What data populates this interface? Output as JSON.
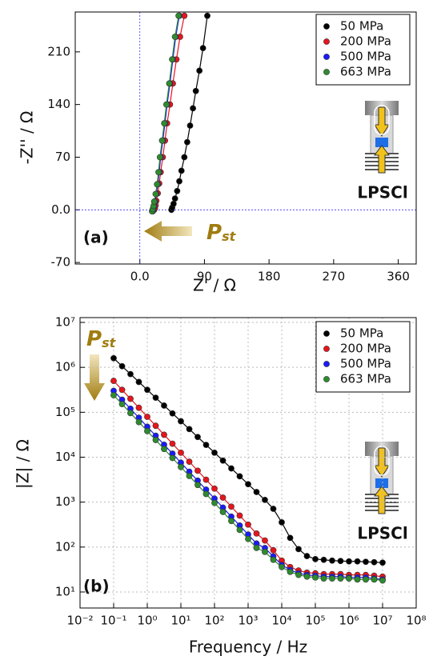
{
  "chart_data": [
    {
      "type": "line",
      "markers": true,
      "xlabel": "Z' / Ω",
      "ylabel": "-Z'' / Ω",
      "xlim": [
        -90,
        385
      ],
      "ylim": [
        -72,
        263
      ],
      "xticks": [
        {
          "value": 0,
          "label": "0.0"
        },
        90,
        180,
        270,
        360
      ],
      "yticks": [
        -70,
        {
          "value": 0,
          "label": "0.0"
        },
        70,
        140,
        210
      ],
      "grid": false,
      "zero_lines": true,
      "zero_line_color": "#3333ff",
      "legend": "upper right",
      "annotations": [
        "(a)",
        "LPSCl"
      ],
      "pressure_label": {
        "text": "P",
        "sub": "st"
      },
      "series": [
        {
          "name": "50 MPa",
          "color": "#000000",
          "x": [
            44,
            45,
            47,
            49,
            52,
            55,
            58,
            62,
            66,
            70,
            74,
            78,
            83,
            88,
            94
          ],
          "values": [
            0,
            3,
            8,
            15,
            25,
            38,
            52,
            70,
            90,
            112,
            135,
            158,
            185,
            215,
            258
          ]
        },
        {
          "name": "200 MPa",
          "color": "#e8141c",
          "x": [
            20,
            21,
            22,
            23,
            25,
            27,
            29,
            32,
            35,
            38,
            42,
            46,
            51,
            56,
            62
          ],
          "values": [
            0,
            2,
            6,
            12,
            22,
            35,
            50,
            70,
            92,
            115,
            140,
            168,
            200,
            230,
            258
          ]
        },
        {
          "name": "500 MPa",
          "color": "#1a1aff",
          "x": [
            18,
            19,
            20,
            21,
            23,
            25,
            27,
            29,
            32,
            35,
            38,
            42,
            46,
            50,
            55
          ],
          "values": [
            -2,
            1,
            5,
            11,
            21,
            34,
            50,
            70,
            92,
            115,
            140,
            168,
            200,
            230,
            258
          ]
        },
        {
          "name": "663 MPa",
          "color": "#2e8b2e",
          "x": [
            17,
            18,
            19,
            20,
            22,
            24,
            26,
            28,
            31,
            34,
            37,
            41,
            45,
            49,
            54
          ],
          "values": [
            -2,
            1,
            5,
            11,
            21,
            34,
            50,
            70,
            92,
            115,
            140,
            168,
            200,
            230,
            258
          ]
        }
      ]
    },
    {
      "type": "line",
      "markers": true,
      "xlabel": "Frequency / Hz",
      "ylabel": "|Z| / Ω",
      "xscale": "log",
      "yscale": "log",
      "xlim": [
        0.01,
        100000000
      ],
      "ylim": [
        4.4,
        12800000
      ],
      "xticks": [
        {
          "value": 0.01,
          "label": "10⁻²"
        },
        {
          "value": 0.1,
          "label": "10⁻¹"
        },
        {
          "value": 1,
          "label": "10⁰"
        },
        {
          "value": 10,
          "label": "10¹"
        },
        {
          "value": 100,
          "label": "10²"
        },
        {
          "value": 1000,
          "label": "10³"
        },
        {
          "value": 10000,
          "label": "10⁴"
        },
        {
          "value": 100000,
          "label": "10⁵"
        },
        {
          "value": 1000000,
          "label": "10⁶"
        },
        {
          "value": 10000000,
          "label": "10⁷"
        },
        {
          "value": 100000000,
          "label": "10⁸"
        }
      ],
      "yticks": [
        {
          "value": 10,
          "label": "10¹"
        },
        {
          "value": 100,
          "label": "10²"
        },
        {
          "value": 1000,
          "label": "10³"
        },
        {
          "value": 10000,
          "label": "10⁴"
        },
        {
          "value": 100000,
          "label": "10⁵"
        },
        {
          "value": 1000000,
          "label": "10⁶"
        },
        {
          "value": 10000000,
          "label": "10⁷"
        }
      ],
      "grid": true,
      "legend": "upper right",
      "annotations": [
        "(b)",
        "LPSCl"
      ],
      "pressure_label": {
        "text": "P",
        "sub": "st"
      },
      "x": [
        0.1,
        0.178,
        0.316,
        0.562,
        1,
        1.78,
        3.16,
        5.62,
        10,
        17.8,
        31.6,
        56.2,
        100,
        178,
        316,
        562,
        1000,
        1780,
        3160,
        5620,
        10000,
        17800,
        31600,
        56200,
        100000,
        178000,
        316000,
        562000,
        1000000,
        1780000,
        3160000,
        5620000,
        10000000
      ],
      "series": [
        {
          "name": "50 MPa",
          "color": "#000000",
          "values": [
            1600000,
            1060000,
            708000,
            473000,
            316000,
            211000,
            141000,
            94400,
            63100,
            42200,
            28200,
            18800,
            12600,
            8410,
            5620,
            3760,
            2510,
            1680,
            1120,
            710,
            355,
            160,
            90,
            63,
            54,
            52,
            50,
            49,
            48,
            48,
            47,
            46,
            45
          ]
        },
        {
          "name": "200 MPa",
          "color": "#e8141c",
          "values": [
            500000,
            316000,
            200000,
            126000,
            79400,
            50100,
            31600,
            20000,
            12600,
            7940,
            5010,
            3160,
            2000,
            1260,
            794,
            501,
            316,
            200,
            140,
            85,
            50,
            36,
            30,
            27,
            26,
            25,
            25,
            25,
            24,
            24,
            24,
            23,
            22
          ]
        },
        {
          "name": "500 MPa",
          "color": "#1a1aff",
          "values": [
            300000,
            190000,
            120000,
            75600,
            47600,
            30100,
            19000,
            12000,
            7560,
            4760,
            3010,
            1900,
            1200,
            756,
            476,
            301,
            190,
            120,
            95,
            62,
            40,
            31,
            26,
            24,
            23,
            22,
            22,
            22,
            21,
            21,
            21,
            20,
            19
          ]
        },
        {
          "name": "663 MPa",
          "color": "#2e8b2e",
          "values": [
            240000,
            152000,
            96000,
            60500,
            38100,
            24100,
            15200,
            9600,
            6050,
            3810,
            2410,
            1520,
            960,
            605,
            381,
            241,
            152,
            96,
            78,
            52,
            36,
            28,
            24,
            22,
            21,
            20,
            20,
            20,
            20,
            19,
            19,
            19,
            18
          ]
        }
      ]
    }
  ]
}
